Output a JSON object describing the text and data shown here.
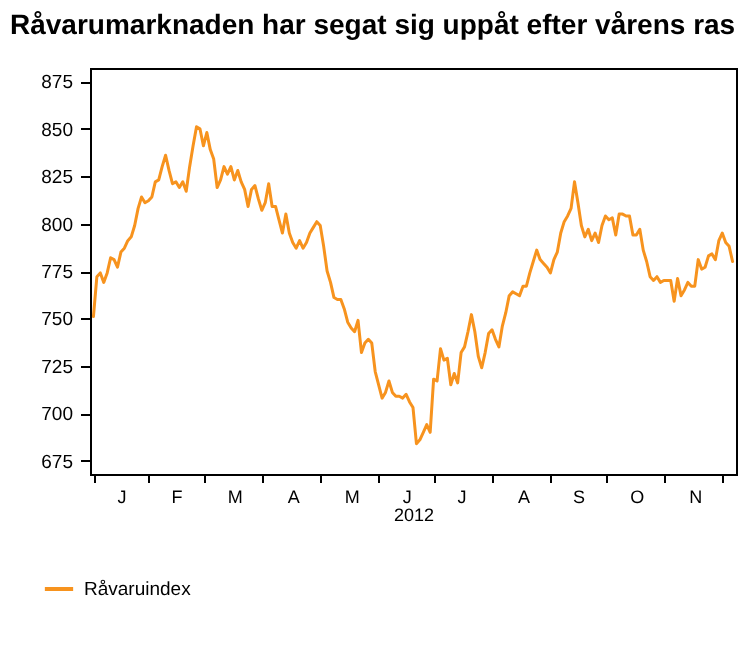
{
  "chart_data": {
    "type": "line",
    "title": "Råvarumarknaden har segat sig uppåt efter vårens ras",
    "xlabel": "2012",
    "categories": [
      null,
      null,
      null,
      null,
      null,
      null,
      null,
      null,
      "J",
      null,
      null,
      null,
      null,
      null,
      null,
      null,
      null,
      null,
      null,
      null,
      null,
      null,
      null,
      null,
      "F",
      null,
      null,
      null,
      null,
      null,
      null,
      null,
      null,
      null,
      null,
      null,
      null,
      null,
      null,
      null,
      null,
      "M",
      null,
      null,
      null,
      null,
      null,
      null,
      null,
      null,
      null,
      null,
      null,
      null,
      null,
      null,
      null,
      null,
      "A",
      null,
      null,
      null,
      null,
      null,
      null,
      null,
      null,
      null,
      null,
      null,
      null,
      null,
      null,
      null,
      null,
      "M",
      null,
      null,
      null,
      null,
      null,
      null,
      null,
      null,
      null,
      null,
      null,
      null,
      null,
      null,
      null,
      "J",
      null,
      null,
      null,
      null,
      null,
      null,
      null,
      null,
      null,
      null,
      null,
      null,
      null,
      null,
      null,
      "J",
      null,
      null,
      null,
      null,
      null,
      null,
      null,
      null,
      null,
      null,
      null,
      null,
      null,
      null,
      null,
      null,
      null,
      "A",
      null,
      null,
      null,
      null,
      null,
      null,
      null,
      null,
      null,
      null,
      null,
      null,
      null,
      null,
      null,
      "S",
      null,
      null,
      null,
      null,
      null,
      null,
      null,
      null,
      null,
      null,
      null,
      null,
      null,
      null,
      null,
      null,
      "O",
      null,
      null,
      null,
      null,
      null,
      null,
      null,
      null,
      null,
      null,
      null,
      null,
      null,
      null,
      null,
      null,
      "N",
      null,
      null,
      null,
      null,
      null,
      null,
      null,
      null,
      null,
      null,
      null
    ],
    "series": [
      {
        "name": "Råvaruindex",
        "color": "#f7931e",
        "values": [
          751,
          772,
          774,
          769,
          774,
          782,
          781,
          777,
          785,
          787,
          791,
          793,
          799,
          808,
          814,
          811,
          812,
          814,
          822,
          823,
          830,
          836,
          828,
          821,
          822,
          819,
          822,
          817,
          830,
          841,
          851,
          850,
          841,
          848,
          839,
          834,
          819,
          823,
          830,
          826,
          830,
          823,
          828,
          822,
          818,
          809,
          818,
          820,
          813,
          807,
          811,
          821,
          809,
          809,
          802,
          795,
          805,
          795,
          790,
          787,
          791,
          787,
          790,
          795,
          798,
          801,
          799,
          788,
          775,
          769,
          761,
          760,
          760,
          755,
          748,
          745,
          743,
          749,
          732,
          737,
          739,
          737,
          722,
          715,
          708,
          711,
          717,
          711,
          709,
          709,
          708,
          710,
          706,
          703,
          684,
          686,
          690,
          694,
          690,
          718,
          717,
          734,
          728,
          729,
          715,
          721,
          716,
          732,
          735,
          743,
          752,
          743,
          730,
          724,
          732,
          742,
          744,
          739,
          735,
          746,
          753,
          762,
          764,
          763,
          762,
          767,
          767,
          774,
          780,
          786,
          781,
          779,
          777,
          774,
          781,
          785,
          795,
          801,
          804,
          808,
          822,
          811,
          799,
          793,
          797,
          791,
          795,
          790,
          799,
          804,
          802,
          803,
          794,
          805,
          805,
          804,
          804,
          794,
          794,
          797,
          786,
          780,
          772,
          770,
          772,
          769,
          770,
          770,
          770,
          759,
          771,
          762,
          765,
          769,
          767,
          767,
          781,
          776,
          777,
          783,
          784,
          781,
          791,
          795,
          790,
          788,
          780
        ]
      }
    ],
    "ylim": [
      668,
      882
    ],
    "yticks": [
      675,
      700,
      725,
      750,
      775,
      800,
      825,
      850,
      875
    ],
    "grid": false,
    "legend": "bottom",
    "line_style": "solid"
  }
}
